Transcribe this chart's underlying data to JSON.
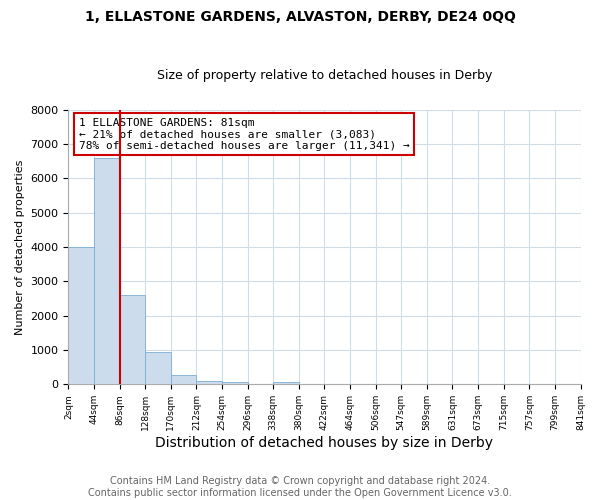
{
  "title1": "1, ELLASTONE GARDENS, ALVASTON, DERBY, DE24 0QQ",
  "title2": "Size of property relative to detached houses in Derby",
  "xlabel": "Distribution of detached houses by size in Derby",
  "ylabel": "Number of detached properties",
  "footer": "Contains HM Land Registry data © Crown copyright and database right 2024.\nContains public sector information licensed under the Open Government Licence v3.0.",
  "bins": [
    "2sqm",
    "44sqm",
    "86sqm",
    "128sqm",
    "170sqm",
    "212sqm",
    "254sqm",
    "296sqm",
    "338sqm",
    "380sqm",
    "422sqm",
    "464sqm",
    "506sqm",
    "547sqm",
    "589sqm",
    "631sqm",
    "673sqm",
    "715sqm",
    "757sqm",
    "799sqm",
    "841sqm"
  ],
  "values": [
    4000,
    6600,
    2600,
    950,
    280,
    100,
    70,
    0,
    60,
    0,
    0,
    0,
    0,
    0,
    0,
    0,
    0,
    0,
    0,
    0
  ],
  "bar_color": "#cddcec",
  "bar_edge_color": "#7bafd4",
  "vline_x_index": 1,
  "vline_color": "#cc0000",
  "annotation_text": "1 ELLASTONE GARDENS: 81sqm\n← 21% of detached houses are smaller (3,083)\n78% of semi-detached houses are larger (11,341) →",
  "annotation_box_color": "#ffffff",
  "annotation_box_edge": "#cc0000",
  "ylim": [
    0,
    8000
  ],
  "yticks": [
    0,
    1000,
    2000,
    3000,
    4000,
    5000,
    6000,
    7000,
    8000
  ],
  "title1_fontsize": 10,
  "title2_fontsize": 9,
  "xlabel_fontsize": 10,
  "ylabel_fontsize": 8,
  "footer_fontsize": 7,
  "annotation_fontsize": 8,
  "grid_color": "#d0dce8"
}
